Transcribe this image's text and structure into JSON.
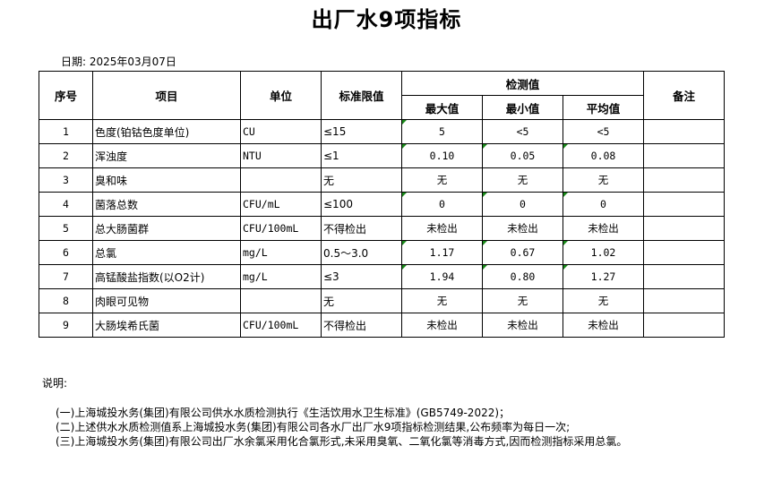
{
  "title": "出厂水9项指标",
  "date": "日期: 2025年03月07日",
  "headers": {
    "no": "序号",
    "item": "项目",
    "unit": "单位",
    "limit": "标准限值",
    "measured": "检测值",
    "max": "最大值",
    "min": "最小值",
    "avg": "平均值",
    "remark": "备注"
  },
  "flag_color": "#1a8a1a",
  "rows": [
    {
      "no": "1",
      "item": "色度(铂钴色度单位)",
      "unit": "CU",
      "limit": "≤15",
      "max": "5",
      "min": "<5",
      "avg": "<5",
      "remark": "",
      "flags": [
        1,
        0,
        0
      ]
    },
    {
      "no": "2",
      "item": "浑浊度",
      "unit": "NTU",
      "limit": "≤1",
      "max": "0.10",
      "min": "0.05",
      "avg": "0.08",
      "remark": "",
      "flags": [
        1,
        1,
        1
      ]
    },
    {
      "no": "3",
      "item": "臭和味",
      "unit": "",
      "limit": "无",
      "max": "无",
      "min": "无",
      "avg": "无",
      "remark": "",
      "flags": [
        0,
        0,
        0
      ]
    },
    {
      "no": "4",
      "item": "菌落总数",
      "unit": "CFU/mL",
      "limit": "≤100",
      "max": "0",
      "min": "0",
      "avg": "0",
      "remark": "",
      "flags": [
        1,
        1,
        1
      ]
    },
    {
      "no": "5",
      "item": "总大肠菌群",
      "unit": "CFU/100mL",
      "limit": "不得检出",
      "max": "未检出",
      "min": "未检出",
      "avg": "未检出",
      "remark": "",
      "flags": [
        0,
        0,
        0
      ]
    },
    {
      "no": "6",
      "item": "总氯",
      "unit": "mg/L",
      "limit": "0.5～3.0",
      "max": "1.17",
      "min": "0.67",
      "avg": "1.02",
      "remark": "",
      "flags": [
        1,
        1,
        1
      ]
    },
    {
      "no": "7",
      "item": "高锰酸盐指数(以O2计)",
      "unit": "mg/L",
      "limit": "≤3",
      "max": "1.94",
      "min": "0.80",
      "avg": "1.27",
      "remark": "",
      "flags": [
        1,
        1,
        1
      ]
    },
    {
      "no": "8",
      "item": "肉眼可见物",
      "unit": "",
      "limit": "无",
      "max": "无",
      "min": "无",
      "avg": "无",
      "remark": "",
      "flags": [
        0,
        0,
        0
      ]
    },
    {
      "no": "9",
      "item": "大肠埃希氏菌",
      "unit": "CFU/100mL",
      "limit": "不得检出",
      "max": "未检出",
      "min": "未检出",
      "avg": "未检出",
      "remark": "",
      "flags": [
        0,
        0,
        0
      ]
    }
  ],
  "notes": {
    "heading": "说明:",
    "lines": [
      "(一)上海城投水务(集团)有限公司供水水质检测执行《生活饮用水卫生标准》(GB5749-2022)；",
      "(二)上述供水水质检测值系上海城投水务(集团)有限公司各水厂出厂水9项指标检测结果,公布频率为每日一次;",
      "(三)上海城投水务(集团)有限公司出厂水余氯采用化合氯形式,未采用臭氧、二氧化氯等消毒方式,因而检测指标采用总氯。"
    ]
  }
}
